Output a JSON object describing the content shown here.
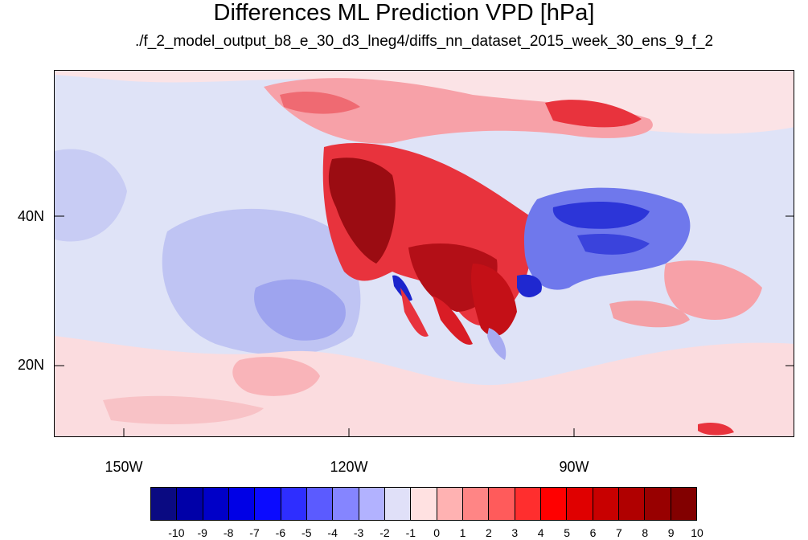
{
  "title": "Differences ML Prediction VPD [hPa]",
  "subtitle": "./f_2_model_output_b8_e_30_d3_lneg4/diffs_nn_dataset_2015_week_30_ens_9_f_2",
  "map": {
    "lat_labels": [
      "40N",
      "20N"
    ],
    "lon_labels": [
      "150W",
      "120W",
      "90W"
    ]
  },
  "colorbar": {
    "colors": [
      "#0a0a82",
      "#0000a8",
      "#0000c8",
      "#0000e6",
      "#0b0bff",
      "#2e2eff",
      "#5b5bff",
      "#8585ff",
      "#b2b2ff",
      "#e0e0f8",
      "#ffe1e1",
      "#ffb2b2",
      "#ff8585",
      "#ff5b5b",
      "#ff2e2e",
      "#ff0000",
      "#e00000",
      "#c80000",
      "#b00000",
      "#980000",
      "#820000"
    ],
    "labels": [
      "-10",
      "-9",
      "-8",
      "-7",
      "-6",
      "-5",
      "-4",
      "-3",
      "-2",
      "-1",
      "0",
      "1",
      "2",
      "3",
      "4",
      "5",
      "6",
      "7",
      "8",
      "9",
      "10"
    ]
  }
}
